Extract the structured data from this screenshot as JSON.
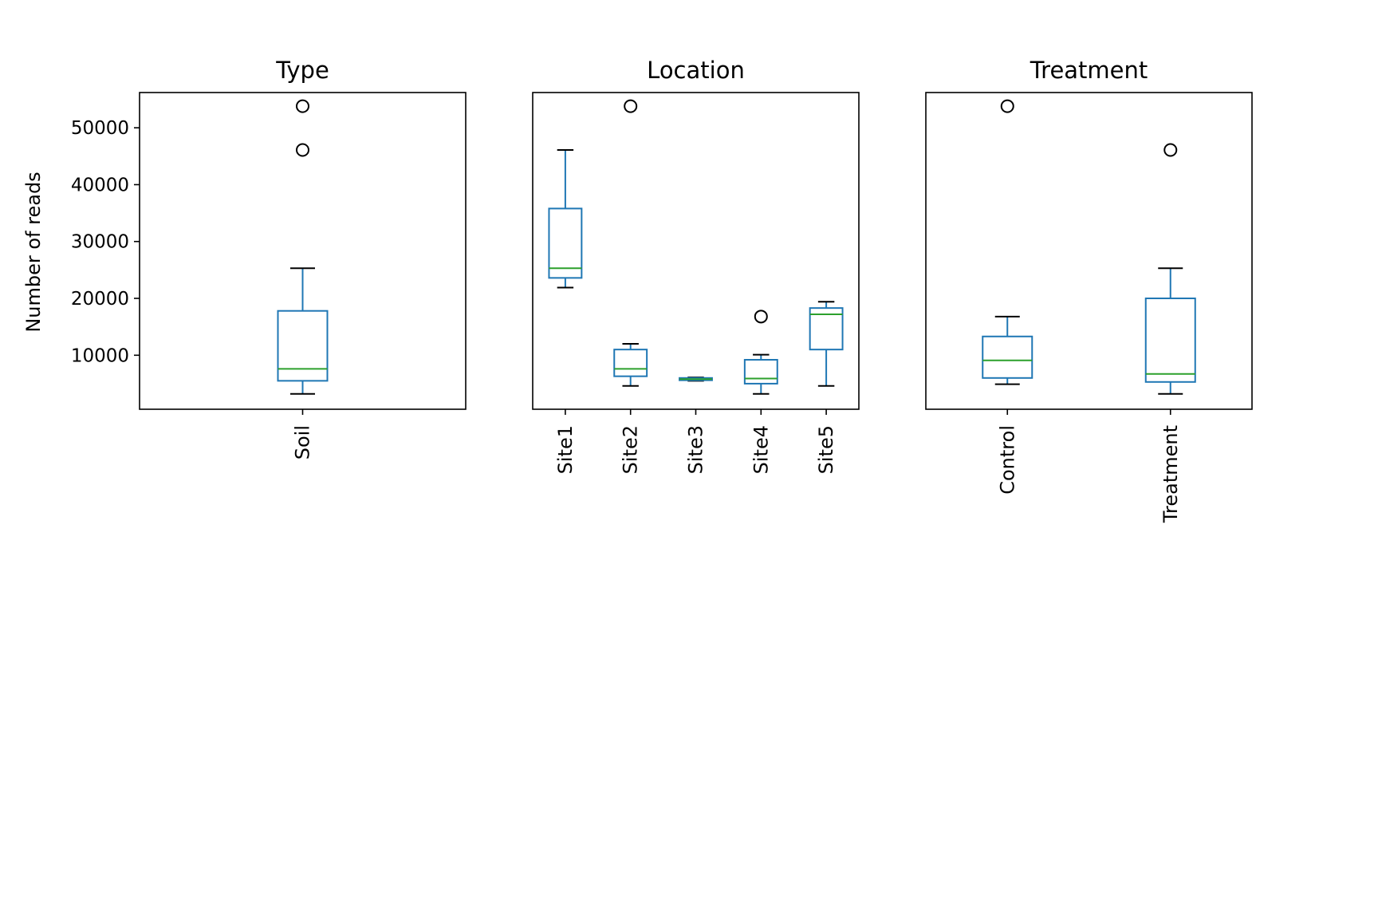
{
  "chart_data": {
    "type": "box",
    "ylabel": "Number of reads",
    "ylim": [
      500,
      56200
    ],
    "yticks": [
      10000,
      20000,
      30000,
      40000,
      50000
    ],
    "grid": false,
    "colors": {
      "box": "#1f77b4",
      "median": "#2ca02c",
      "whisker_cap": "#000000",
      "flier": "#000000",
      "axes": "#000000"
    },
    "panels": [
      {
        "title": "Type",
        "categories": [
          "Soil"
        ],
        "boxes": [
          {
            "label": "Soil",
            "whislo": 3200,
            "q1": 5500,
            "med": 7600,
            "q3": 17800,
            "whishi": 25300,
            "fliers": [
              46100,
              53800
            ]
          }
        ]
      },
      {
        "title": "Location",
        "categories": [
          "Site1",
          "Site2",
          "Site3",
          "Site4",
          "Site5"
        ],
        "boxes": [
          {
            "label": "Site1",
            "whislo": 21900,
            "q1": 23600,
            "med": 25300,
            "q3": 35800,
            "whishi": 46100,
            "fliers": []
          },
          {
            "label": "Site2",
            "whislo": 4600,
            "q1": 6300,
            "med": 7600,
            "q3": 11000,
            "whishi": 12000,
            "fliers": [
              53800
            ]
          },
          {
            "label": "Site3",
            "whislo": 5500,
            "q1": 5600,
            "med": 5800,
            "q3": 6000,
            "whishi": 6100,
            "fliers": []
          },
          {
            "label": "Site4",
            "whislo": 3200,
            "q1": 5000,
            "med": 5900,
            "q3": 9200,
            "whishi": 10100,
            "fliers": [
              16800
            ]
          },
          {
            "label": "Site5",
            "whislo": 4600,
            "q1": 11000,
            "med": 17200,
            "q3": 18300,
            "whishi": 19400,
            "fliers": []
          }
        ]
      },
      {
        "title": "Treatment",
        "categories": [
          "Control",
          "Treatment"
        ],
        "boxes": [
          {
            "label": "Control",
            "whislo": 4900,
            "q1": 6000,
            "med": 9100,
            "q3": 13300,
            "whishi": 16800,
            "fliers": [
              53800
            ]
          },
          {
            "label": "Treatment",
            "whislo": 3200,
            "q1": 5300,
            "med": 6700,
            "q3": 20000,
            "whishi": 25300,
            "fliers": [
              46100
            ]
          }
        ]
      }
    ]
  }
}
